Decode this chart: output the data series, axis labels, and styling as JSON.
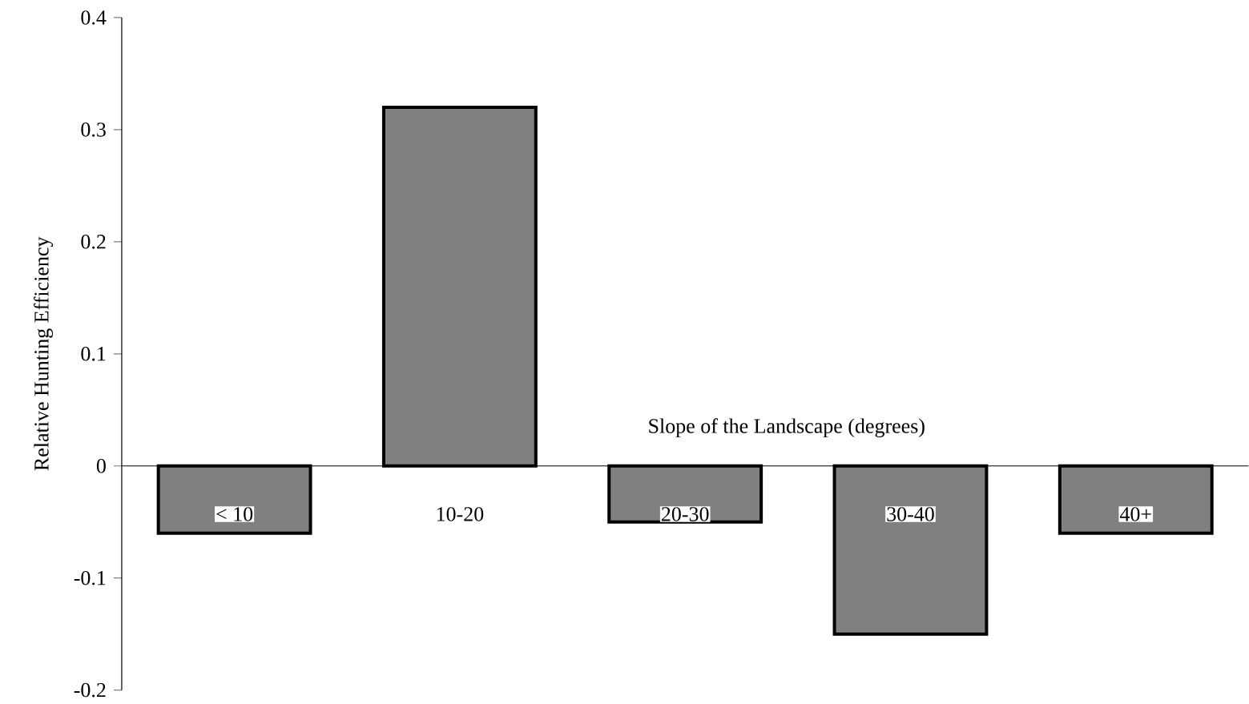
{
  "chart_data": {
    "type": "bar",
    "xlabel": "Slope of the Landscape (degrees)",
    "ylabel": "Relative Hunting Efficiency",
    "categories": [
      "< 10",
      "10-20",
      "20-30",
      "30-40",
      "40+"
    ],
    "values": [
      -0.06,
      0.32,
      -0.05,
      -0.15,
      -0.06
    ],
    "color": "#808080",
    "ylim": [
      -0.2,
      0.4
    ],
    "yticks": [
      -0.2,
      -0.1,
      0,
      0.1,
      0.2,
      0.3,
      0.4
    ]
  }
}
